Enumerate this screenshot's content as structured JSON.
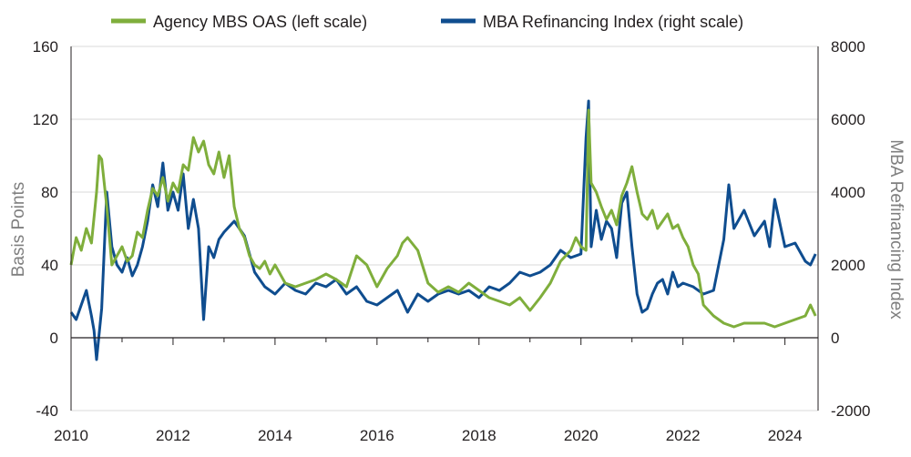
{
  "chart_data": {
    "type": "line",
    "title": "",
    "xlabel": "",
    "ylabel": "Basis Points",
    "y2label": "MBA Refinancing Index",
    "xlim": [
      2010,
      2024.65
    ],
    "ylim": [
      -40,
      160
    ],
    "y2lim": [
      -2000,
      8000
    ],
    "x_ticks": [
      "2010",
      "2012",
      "2014",
      "2016",
      "2018",
      "2020",
      "2022",
      "2024"
    ],
    "y_ticks": [
      "-40",
      "0",
      "40",
      "80",
      "120",
      "160"
    ],
    "y2_ticks": [
      "-2000",
      "0",
      "2000",
      "4000",
      "6000",
      "8000"
    ],
    "grid": "horizontal",
    "legend_position": "top",
    "colors": {
      "oas": "#7fae3c",
      "refi": "#0f4d8f",
      "grid": "#d9d9d9",
      "axis": "#231f20"
    },
    "series": [
      {
        "name": "Agency MBS OAS (left scale)",
        "axis": "left",
        "x": [
          2010.0,
          2010.1,
          2010.2,
          2010.3,
          2010.4,
          2010.5,
          2010.55,
          2010.6,
          2010.7,
          2010.8,
          2010.9,
          2011.0,
          2011.1,
          2011.2,
          2011.3,
          2011.4,
          2011.5,
          2011.6,
          2011.7,
          2011.8,
          2011.9,
          2012.0,
          2012.1,
          2012.2,
          2012.3,
          2012.4,
          2012.5,
          2012.6,
          2012.7,
          2012.8,
          2012.9,
          2013.0,
          2013.1,
          2013.2,
          2013.3,
          2013.4,
          2013.5,
          2013.6,
          2013.7,
          2013.8,
          2013.9,
          2014.0,
          2014.2,
          2014.4,
          2014.6,
          2014.8,
          2015.0,
          2015.2,
          2015.4,
          2015.6,
          2015.8,
          2016.0,
          2016.2,
          2016.4,
          2016.5,
          2016.6,
          2016.8,
          2017.0,
          2017.2,
          2017.4,
          2017.6,
          2017.8,
          2018.0,
          2018.2,
          2018.4,
          2018.6,
          2018.8,
          2019.0,
          2019.2,
          2019.4,
          2019.6,
          2019.8,
          2019.9,
          2020.0,
          2020.1,
          2020.15,
          2020.2,
          2020.3,
          2020.4,
          2020.5,
          2020.6,
          2020.7,
          2020.8,
          2020.9,
          2021.0,
          2021.1,
          2021.2,
          2021.3,
          2021.4,
          2021.5,
          2021.6,
          2021.7,
          2021.8,
          2021.9,
          2022.0,
          2022.1,
          2022.2,
          2022.3,
          2022.4,
          2022.6,
          2022.8,
          2023.0,
          2023.2,
          2023.4,
          2023.6,
          2023.8,
          2024.0,
          2024.2,
          2024.4,
          2024.5,
          2024.6
        ],
        "values": [
          40,
          55,
          48,
          60,
          52,
          80,
          100,
          98,
          72,
          40,
          45,
          50,
          42,
          45,
          58,
          55,
          70,
          82,
          78,
          88,
          75,
          85,
          80,
          95,
          92,
          110,
          102,
          108,
          95,
          90,
          102,
          88,
          100,
          72,
          60,
          55,
          45,
          40,
          38,
          42,
          35,
          40,
          30,
          28,
          30,
          32,
          35,
          32,
          28,
          45,
          40,
          28,
          38,
          45,
          52,
          55,
          48,
          30,
          25,
          28,
          25,
          30,
          26,
          22,
          20,
          18,
          22,
          15,
          22,
          30,
          42,
          48,
          55,
          50,
          48,
          125,
          85,
          80,
          72,
          65,
          70,
          62,
          78,
          85,
          94,
          80,
          68,
          65,
          70,
          60,
          64,
          68,
          60,
          62,
          55,
          50,
          40,
          35,
          18,
          12,
          8,
          6,
          8,
          8,
          8,
          6,
          8,
          10,
          12,
          18,
          12
        ]
      },
      {
        "name": "MBA Refinancing Index (right scale)",
        "axis": "right",
        "x": [
          2010.0,
          2010.1,
          2010.2,
          2010.3,
          2010.4,
          2010.45,
          2010.5,
          2010.6,
          2010.7,
          2010.8,
          2010.9,
          2011.0,
          2011.1,
          2011.2,
          2011.3,
          2011.4,
          2011.5,
          2011.6,
          2011.7,
          2011.8,
          2011.9,
          2012.0,
          2012.1,
          2012.2,
          2012.3,
          2012.4,
          2012.5,
          2012.6,
          2012.7,
          2012.8,
          2012.9,
          2013.0,
          2013.2,
          2013.4,
          2013.6,
          2013.8,
          2014.0,
          2014.2,
          2014.4,
          2014.6,
          2014.8,
          2015.0,
          2015.2,
          2015.4,
          2015.6,
          2015.8,
          2016.0,
          2016.2,
          2016.4,
          2016.6,
          2016.8,
          2017.0,
          2017.2,
          2017.4,
          2017.6,
          2017.8,
          2018.0,
          2018.2,
          2018.4,
          2018.6,
          2018.8,
          2019.0,
          2019.2,
          2019.4,
          2019.6,
          2019.8,
          2020.0,
          2020.1,
          2020.15,
          2020.2,
          2020.3,
          2020.4,
          2020.5,
          2020.6,
          2020.7,
          2020.8,
          2020.9,
          2021.0,
          2021.1,
          2021.2,
          2021.3,
          2021.4,
          2021.5,
          2021.6,
          2021.7,
          2021.8,
          2021.9,
          2022.0,
          2022.2,
          2022.4,
          2022.6,
          2022.7,
          2022.8,
          2022.9,
          2023.0,
          2023.2,
          2023.4,
          2023.6,
          2023.7,
          2023.8,
          2024.0,
          2024.2,
          2024.4,
          2024.5,
          2024.6
        ],
        "values": [
          700,
          500,
          900,
          1300,
          600,
          200,
          -600,
          800,
          4000,
          2500,
          2000,
          1800,
          2200,
          1700,
          2000,
          2500,
          3200,
          4200,
          3600,
          4800,
          3500,
          4000,
          3500,
          4500,
          3000,
          3800,
          3000,
          500,
          2500,
          2200,
          2700,
          2900,
          3200,
          2800,
          1800,
          1400,
          1200,
          1500,
          1300,
          1200,
          1500,
          1400,
          1600,
          1200,
          1400,
          1000,
          900,
          1100,
          1300,
          700,
          1200,
          1000,
          1200,
          1300,
          1200,
          1300,
          1100,
          1400,
          1300,
          1500,
          1800,
          1700,
          1800,
          2000,
          2400,
          2200,
          2300,
          5500,
          6500,
          2500,
          3500,
          2700,
          3200,
          3000,
          2200,
          3700,
          4000,
          2500,
          1200,
          700,
          800,
          1200,
          1500,
          1600,
          1200,
          1800,
          1400,
          1500,
          1400,
          1200,
          1300,
          2000,
          2700,
          4200,
          3000,
          3500,
          2800,
          3200,
          2500,
          3800,
          2500,
          2600,
          2100,
          2000,
          2300
        ]
      }
    ]
  }
}
